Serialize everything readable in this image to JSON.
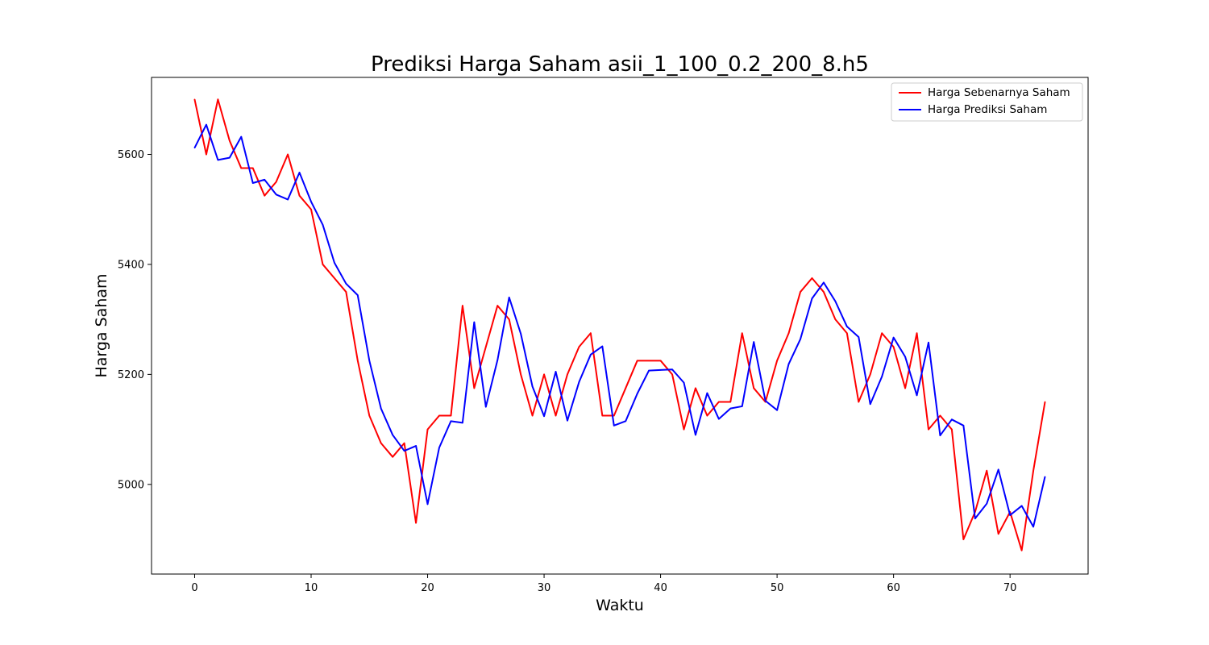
{
  "chart_data": {
    "type": "line",
    "title": "Prediksi Harga Saham asii_1_100_0.2_200_8.h5",
    "xlabel": "Waktu",
    "ylabel": "Harga Saham",
    "xlim": [
      -3.7,
      76.7
    ],
    "ylim": [
      4837,
      5740
    ],
    "xticks": [
      0,
      10,
      20,
      30,
      40,
      50,
      60,
      70
    ],
    "yticks": [
      5000,
      5200,
      5400,
      5600
    ],
    "grid": false,
    "legend_position": "top-right",
    "x": [
      0,
      1,
      2,
      3,
      4,
      5,
      6,
      7,
      8,
      9,
      10,
      11,
      12,
      13,
      14,
      15,
      16,
      17,
      18,
      19,
      20,
      21,
      22,
      23,
      24,
      25,
      26,
      27,
      28,
      29,
      30,
      31,
      32,
      33,
      34,
      35,
      36,
      37,
      38,
      39,
      40,
      41,
      42,
      43,
      44,
      45,
      46,
      47,
      48,
      49,
      50,
      51,
      52,
      53,
      54,
      55,
      56,
      57,
      58,
      59,
      60,
      61,
      62,
      63,
      64,
      65,
      66,
      67,
      68,
      69,
      70,
      71,
      72,
      73
    ],
    "series": [
      {
        "name": "Harga Sebenarnya Saham",
        "color": "#ff0000",
        "values": [
          5700,
          5600,
          5700,
          5625,
          5575,
          5575,
          5525,
          5550,
          5600,
          5525,
          5500,
          5400,
          5375,
          5350,
          5225,
          5125,
          5075,
          5050,
          5075,
          4930,
          5100,
          5125,
          5125,
          5325,
          5175,
          5250,
          5325,
          5300,
          5200,
          5125,
          5200,
          5125,
          5200,
          5250,
          5275,
          5125,
          5125,
          5175,
          5225,
          5225,
          5225,
          5200,
          5100,
          5175,
          5125,
          5150,
          5150,
          5275,
          5175,
          5150,
          5225,
          5275,
          5350,
          5375,
          5350,
          5300,
          5275,
          5150,
          5200,
          5275,
          5250,
          5175,
          5275,
          5100,
          5125,
          5100,
          4900,
          4950,
          5025,
          4910,
          4950,
          4880,
          5025,
          5150
        ]
      },
      {
        "name": "Harga Prediksi Saham",
        "color": "#0000ff",
        "values": [
          5612,
          5654,
          5590,
          5594,
          5632,
          5548,
          5554,
          5527,
          5518,
          5567,
          5514,
          5472,
          5403,
          5365,
          5344,
          5225,
          5138,
          5090,
          5061,
          5070,
          4964,
          5067,
          5115,
          5112,
          5295,
          5141,
          5226,
          5340,
          5274,
          5178,
          5124,
          5205,
          5116,
          5186,
          5236,
          5251,
          5107,
          5115,
          5165,
          5207,
          5208,
          5209,
          5185,
          5090,
          5166,
          5119,
          5138,
          5142,
          5259,
          5152,
          5135,
          5219,
          5264,
          5338,
          5367,
          5333,
          5287,
          5268,
          5146,
          5196,
          5267,
          5232,
          5162,
          5258,
          5089,
          5118,
          5107,
          4938,
          4965,
          5027,
          4944,
          4961,
          4923,
          5014
        ]
      }
    ]
  }
}
